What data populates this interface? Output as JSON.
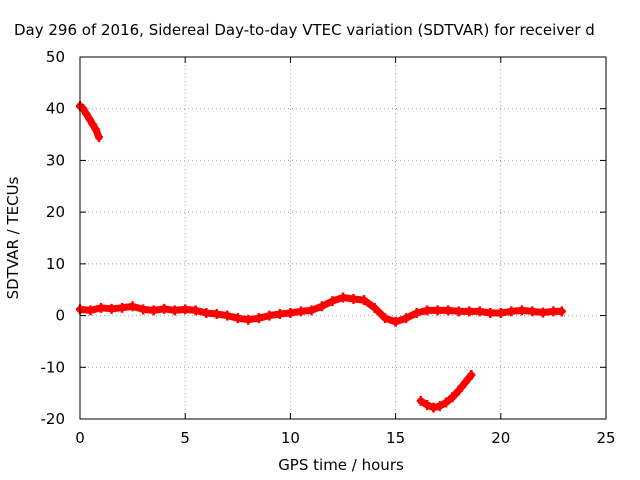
{
  "chart_data": {
    "type": "scatter",
    "title": "Day 296 of 2016, Sidereal Day-to-day VTEC variation (SDTVAR) for receiver d",
    "xlabel": "GPS time / hours",
    "ylabel": "SDTVAR / TECUs",
    "xlim": [
      0,
      25
    ],
    "ylim": [
      -20,
      50
    ],
    "xticks": [
      "0",
      "5",
      "10",
      "15",
      "20",
      "25"
    ],
    "yticks": [
      "-20",
      "-10",
      "0",
      "10",
      "20",
      "30",
      "40",
      "50"
    ],
    "grid": true,
    "legend": "none",
    "marker_color": "#ff0000",
    "series": [
      {
        "x": [
          0.0,
          0.15,
          0.3,
          0.45,
          0.6,
          0.75,
          0.9
        ],
        "y": [
          40.5,
          40.0,
          39.0,
          38.0,
          37.0,
          36.0,
          34.5
        ]
      },
      {
        "x": [
          0.0,
          0.5,
          1.0,
          1.5,
          2.0,
          2.5,
          3.0,
          3.5,
          4.0,
          4.5,
          5.0,
          5.5,
          6.0,
          6.5,
          7.0,
          7.5,
          8.0,
          8.5,
          9.0,
          9.5,
          10.0,
          10.5,
          11.0,
          11.5,
          12.0,
          12.5,
          13.0,
          13.5,
          14.0,
          14.5,
          15.0,
          15.5,
          16.0,
          16.5,
          17.0,
          17.5,
          18.0,
          18.5,
          19.0,
          19.5,
          20.0,
          20.5,
          21.0,
          21.5,
          22.0,
          22.5,
          22.9
        ],
        "y": [
          1.2,
          1.0,
          1.5,
          1.3,
          1.5,
          1.8,
          1.2,
          1.0,
          1.3,
          1.0,
          1.2,
          1.0,
          0.5,
          0.3,
          0.0,
          -0.5,
          -0.8,
          -0.5,
          0.0,
          0.3,
          0.5,
          0.8,
          1.0,
          1.8,
          2.8,
          3.5,
          3.2,
          3.0,
          1.5,
          -0.5,
          -1.2,
          -0.5,
          0.5,
          1.0,
          1.0,
          1.0,
          0.8,
          0.8,
          0.8,
          0.5,
          0.5,
          0.8,
          1.0,
          0.8,
          0.6,
          0.8,
          0.8
        ]
      },
      {
        "x": [
          16.2,
          16.5,
          16.8,
          17.1,
          17.4,
          17.7,
          18.0,
          18.3,
          18.6
        ],
        "y": [
          -16.5,
          -17.3,
          -17.8,
          -17.5,
          -16.8,
          -15.8,
          -14.5,
          -13.0,
          -11.5
        ]
      }
    ]
  }
}
